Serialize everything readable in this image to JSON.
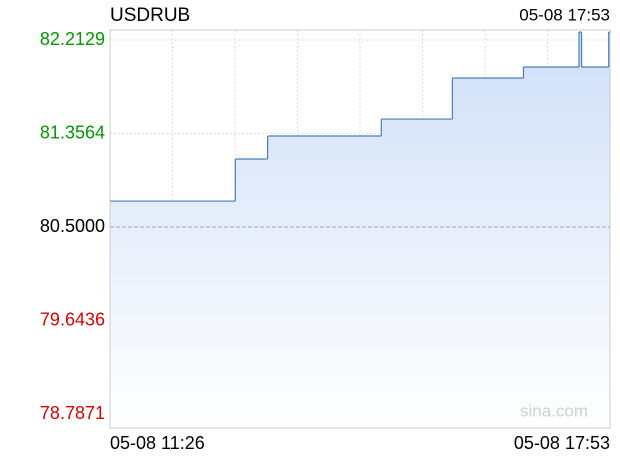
{
  "chart_data": {
    "type": "step",
    "title": "USDRUB",
    "timestamp": "05-08 17:53",
    "watermark": "sina.com",
    "x": [
      "05-08 11:26",
      "05-08 13:03",
      "05-08 13:28",
      "05-08 14:56",
      "05-08 15:51",
      "05-08 16:46",
      "05-08 17:29",
      "05-08 17:31",
      "05-08 17:52",
      "05-08 17:53"
    ],
    "values": [
      80.738,
      81.123,
      81.334,
      81.489,
      81.865,
      81.966,
      82.286,
      81.966,
      82.286,
      82.286
    ],
    "xlim": [
      "05-08 11:26",
      "05-08 17:53"
    ],
    "ylim": [
      78.659,
      82.305
    ],
    "yticks": [
      82.2129,
      81.3564,
      {
        "value": 80.5,
        "label": "80.5000"
      },
      79.6436,
      78.7871
    ],
    "baseline": 80.5,
    "color": "#4a7ebb",
    "up_color": "#009900",
    "down_color": "#e00000",
    "flat_color": "#000000",
    "grid": true
  }
}
